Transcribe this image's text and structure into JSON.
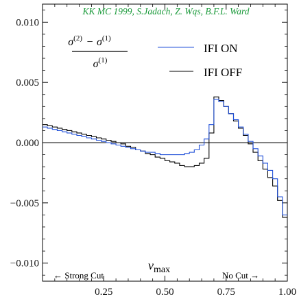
{
  "chart_data": {
    "type": "line",
    "title": "KK MC 1999, S.Jadach, Z. Wąs, B.F.L. Ward",
    "ylabel_parts": {
      "num_a": "σ(2)",
      "minus": "−",
      "num_b": "σ(1)",
      "den": "σ(1)"
    },
    "ylabel_super": {
      "num_a_base": "σ",
      "num_a_sup": "(2)",
      "num_b_base": "σ",
      "num_b_sup": "(1)",
      "den_base": "σ",
      "den_sup": "(1)"
    },
    "xlabel": {
      "base": "v",
      "sub": "max"
    },
    "annotations": {
      "left": "← Strong Cut",
      "right": "No Cut →"
    },
    "xlim": [
      0.0,
      1.0
    ],
    "ylim": [
      -0.0115,
      0.0115
    ],
    "x_ticks": [
      0.25,
      0.5,
      0.75,
      1.0
    ],
    "x_tick_labels": [
      "0.25",
      "0.50",
      "0.75",
      "1.00"
    ],
    "y_ticks": [
      -0.01,
      -0.005,
      0.0,
      0.005,
      0.01
    ],
    "y_tick_labels": [
      "−0.010",
      "−0.005",
      "0.000",
      "0.005",
      "0.010"
    ],
    "colors": {
      "axis": "#000000",
      "title": "#1a9a3a",
      "ifi_on": "#1f4fd8",
      "ifi_off": "#000000"
    },
    "series": [
      {
        "name": "IFI ON",
        "style": "step",
        "x": [
          0.0,
          0.02,
          0.04,
          0.06,
          0.08,
          0.1,
          0.12,
          0.14,
          0.16,
          0.18,
          0.2,
          0.22,
          0.24,
          0.26,
          0.28,
          0.3,
          0.32,
          0.34,
          0.36,
          0.38,
          0.4,
          0.42,
          0.44,
          0.46,
          0.48,
          0.5,
          0.52,
          0.54,
          0.56,
          0.58,
          0.6,
          0.62,
          0.64,
          0.66,
          0.68,
          0.7,
          0.72,
          0.74,
          0.76,
          0.78,
          0.8,
          0.82,
          0.84,
          0.86,
          0.88,
          0.9,
          0.92,
          0.94,
          0.96,
          0.98,
          1.0
        ],
        "y": [
          0.0013,
          0.0012,
          0.0011,
          0.001,
          0.0009,
          0.0008,
          0.0007,
          0.0006,
          0.0005,
          0.0004,
          0.0003,
          0.0002,
          0.0001,
          0.0,
          -0.0001,
          -0.0002,
          -0.0003,
          -0.0004,
          -0.0005,
          -0.0006,
          -0.0007,
          -0.0008,
          -0.0008,
          -0.0009,
          -0.001,
          -0.001,
          -0.001,
          -0.001,
          -0.001,
          -0.0009,
          -0.0008,
          -0.0006,
          -0.0002,
          0.0003,
          0.0015,
          0.0036,
          0.0034,
          0.003,
          0.0024,
          0.0019,
          0.0013,
          0.0007,
          0.0001,
          -0.0005,
          -0.0011,
          -0.0017,
          -0.0023,
          -0.003,
          -0.0045,
          -0.006,
          -0.006
        ]
      },
      {
        "name": "IFI OFF",
        "style": "step",
        "x": [
          0.0,
          0.02,
          0.04,
          0.06,
          0.08,
          0.1,
          0.12,
          0.14,
          0.16,
          0.18,
          0.2,
          0.22,
          0.24,
          0.26,
          0.28,
          0.3,
          0.32,
          0.34,
          0.36,
          0.38,
          0.4,
          0.42,
          0.44,
          0.46,
          0.48,
          0.5,
          0.52,
          0.54,
          0.56,
          0.58,
          0.6,
          0.62,
          0.64,
          0.66,
          0.68,
          0.7,
          0.72,
          0.74,
          0.76,
          0.78,
          0.8,
          0.82,
          0.84,
          0.86,
          0.88,
          0.9,
          0.92,
          0.94,
          0.96,
          0.98,
          1.0
        ],
        "y": [
          0.0015,
          0.0014,
          0.0013,
          0.0012,
          0.0011,
          0.001,
          0.0009,
          0.0008,
          0.0007,
          0.0006,
          0.0005,
          0.0004,
          0.0003,
          0.0002,
          0.0001,
          0.0,
          -0.0001,
          -0.0003,
          -0.0004,
          -0.0006,
          -0.0007,
          -0.0009,
          -0.001,
          -0.0012,
          -0.0013,
          -0.0015,
          -0.0016,
          -0.0017,
          -0.0019,
          -0.002,
          -0.002,
          -0.0019,
          -0.0017,
          -0.0013,
          0.0008,
          0.0038,
          0.0035,
          0.003,
          0.0024,
          0.0018,
          0.0012,
          0.0006,
          -0.0001,
          -0.0008,
          -0.0015,
          -0.0022,
          -0.0029,
          -0.0036,
          -0.0048,
          -0.0062,
          -0.0062
        ]
      }
    ],
    "grid": false,
    "legend": {
      "placement": "top-right"
    }
  }
}
